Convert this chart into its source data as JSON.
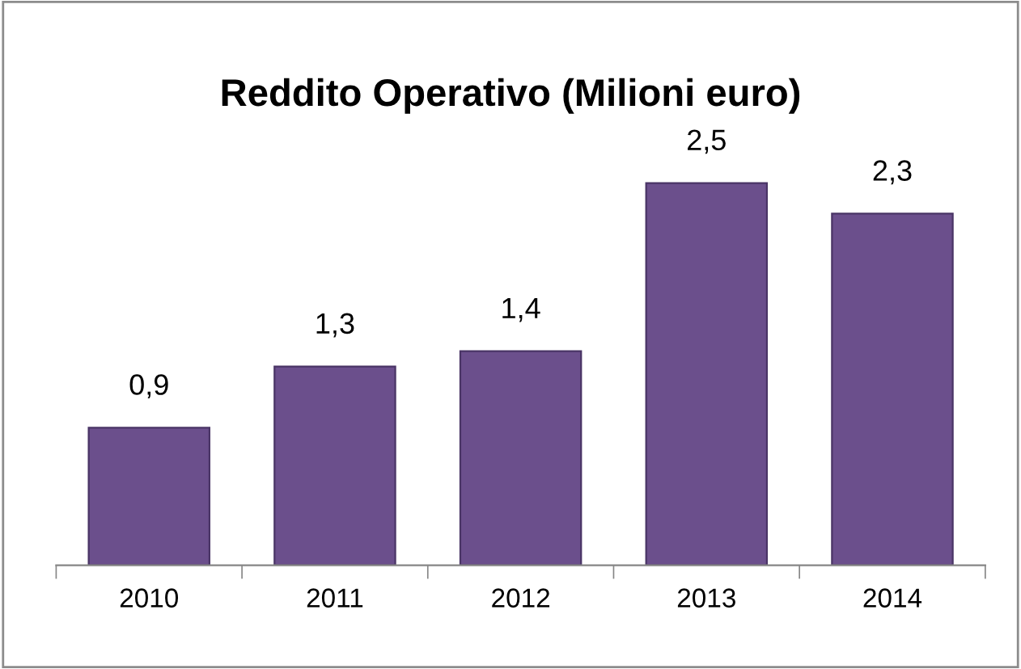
{
  "chart_data": {
    "type": "bar",
    "title": "Reddito Operativo (Milioni euro)",
    "categories": [
      "2010",
      "2011",
      "2012",
      "2013",
      "2014"
    ],
    "values": [
      0.9,
      1.3,
      1.4,
      2.5,
      2.3
    ],
    "value_labels": [
      "0,9",
      "1,3",
      "1,4",
      "2,5",
      "2,3"
    ],
    "color": "#6b4f8c",
    "grid": false,
    "legend": false
  }
}
